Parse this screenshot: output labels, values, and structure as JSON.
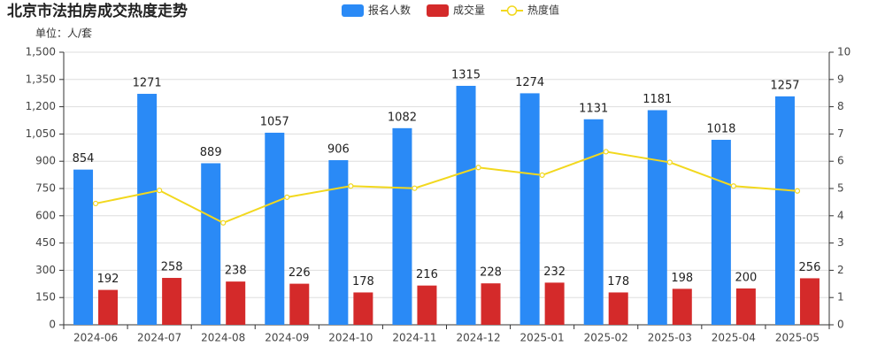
{
  "chart_data": {
    "type": "bar",
    "title": "北京市法拍房成交热度走势",
    "unit_label": "单位：人/套",
    "categories": [
      "2024-06",
      "2024-07",
      "2024-08",
      "2024-09",
      "2024-10",
      "2024-11",
      "2024-12",
      "2025-01",
      "2025-02",
      "2025-03",
      "2025-04",
      "2025-05"
    ],
    "series": [
      {
        "name": "报名人数",
        "color": "#2a8af6",
        "type": "bar",
        "values": [
          854,
          1271,
          889,
          1057,
          906,
          1082,
          1315,
          1274,
          1131,
          1181,
          1018,
          1257
        ]
      },
      {
        "name": "成交量",
        "color": "#d42a2a",
        "type": "bar",
        "values": [
          192,
          258,
          238,
          226,
          178,
          216,
          228,
          232,
          178,
          198,
          200,
          256
        ]
      },
      {
        "name": "热度值",
        "color": "#f2d81e",
        "type": "line",
        "axis": "y2",
        "values": [
          4.45,
          4.93,
          3.74,
          4.68,
          5.09,
          5.01,
          5.77,
          5.49,
          6.35,
          5.96,
          5.09,
          4.91
        ]
      }
    ],
    "ylim": [
      0,
      1500
    ],
    "yticks": [
      0,
      150,
      300,
      450,
      600,
      750,
      900,
      {
        "value": 1050,
        "label": "1,050"
      },
      {
        "value": 1200,
        "label": "1,200"
      },
      {
        "value": 1350,
        "label": "1,350"
      },
      {
        "value": 1500,
        "label": "1,500"
      }
    ],
    "y2lim": [
      0,
      10
    ],
    "y2ticks": [
      0,
      1,
      2,
      3,
      4,
      5,
      6,
      7,
      8,
      9,
      10
    ],
    "grid": true
  }
}
